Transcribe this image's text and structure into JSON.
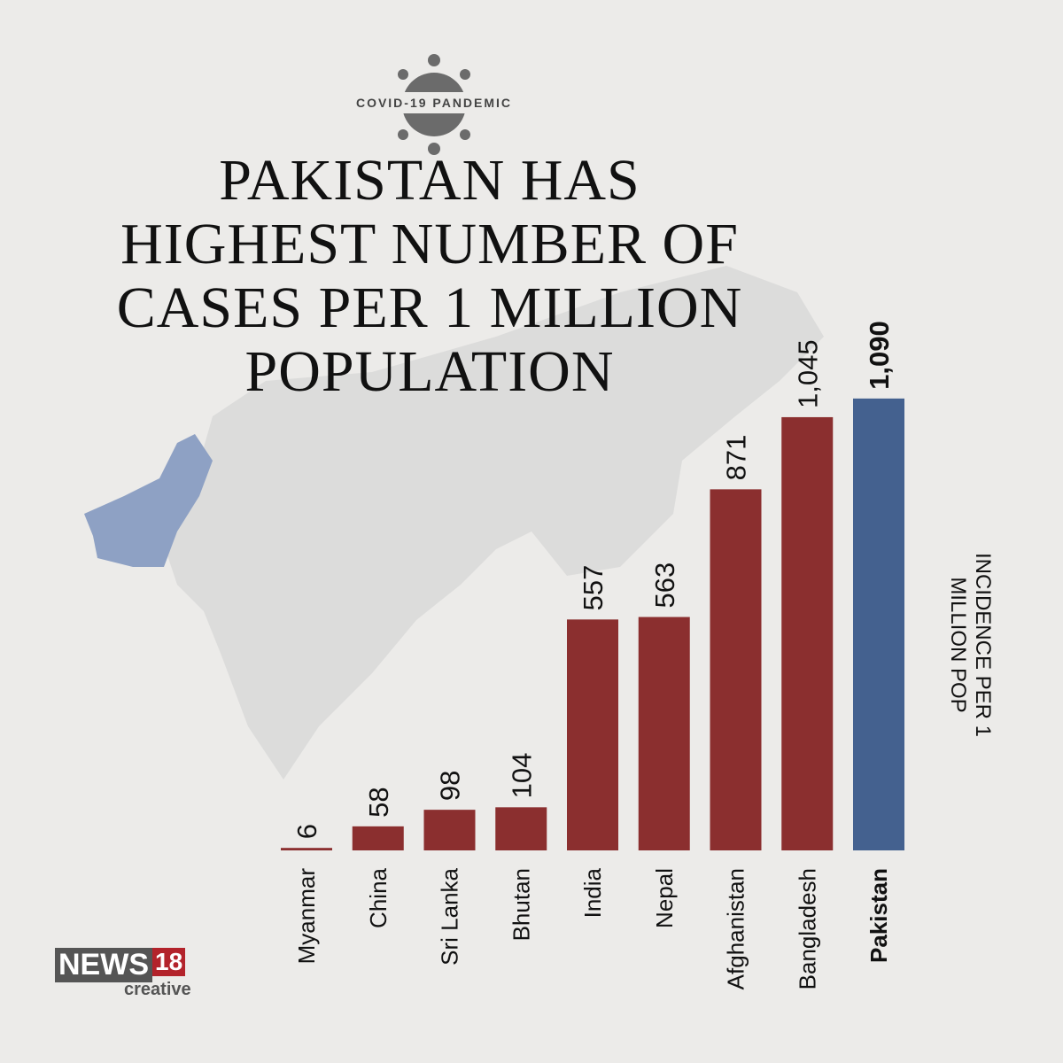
{
  "chart_data": {
    "type": "bar",
    "kicker": "COVID-19 PANDEMIC",
    "title": "PAKISTAN HAS HIGHEST NUMBER OF CASES PER 1 MILLION POPULATION",
    "y_label": "INCIDENCE PER 1 MILLION POP",
    "categories": [
      "Myanmar",
      "China",
      "Sri Lanka",
      "Bhutan",
      "India",
      "Nepal",
      "Afghanistan",
      "Bangladesh",
      "Pakistan"
    ],
    "values": [
      6,
      58,
      98,
      104,
      557,
      563,
      871,
      1045,
      1090
    ],
    "value_labels": [
      "6",
      "58",
      "98",
      "104",
      "557",
      "563",
      "871",
      "1,045",
      "1,090"
    ],
    "colors": [
      "#8b2f2f",
      "#8b2f2f",
      "#8b2f2f",
      "#8b2f2f",
      "#8b2f2f",
      "#8b2f2f",
      "#8b2f2f",
      "#8b2f2f",
      "#44618f"
    ],
    "highlight": "Pakistan"
  },
  "logo": {
    "brand": "NEWS",
    "number": "18",
    "tagline": "creative"
  }
}
